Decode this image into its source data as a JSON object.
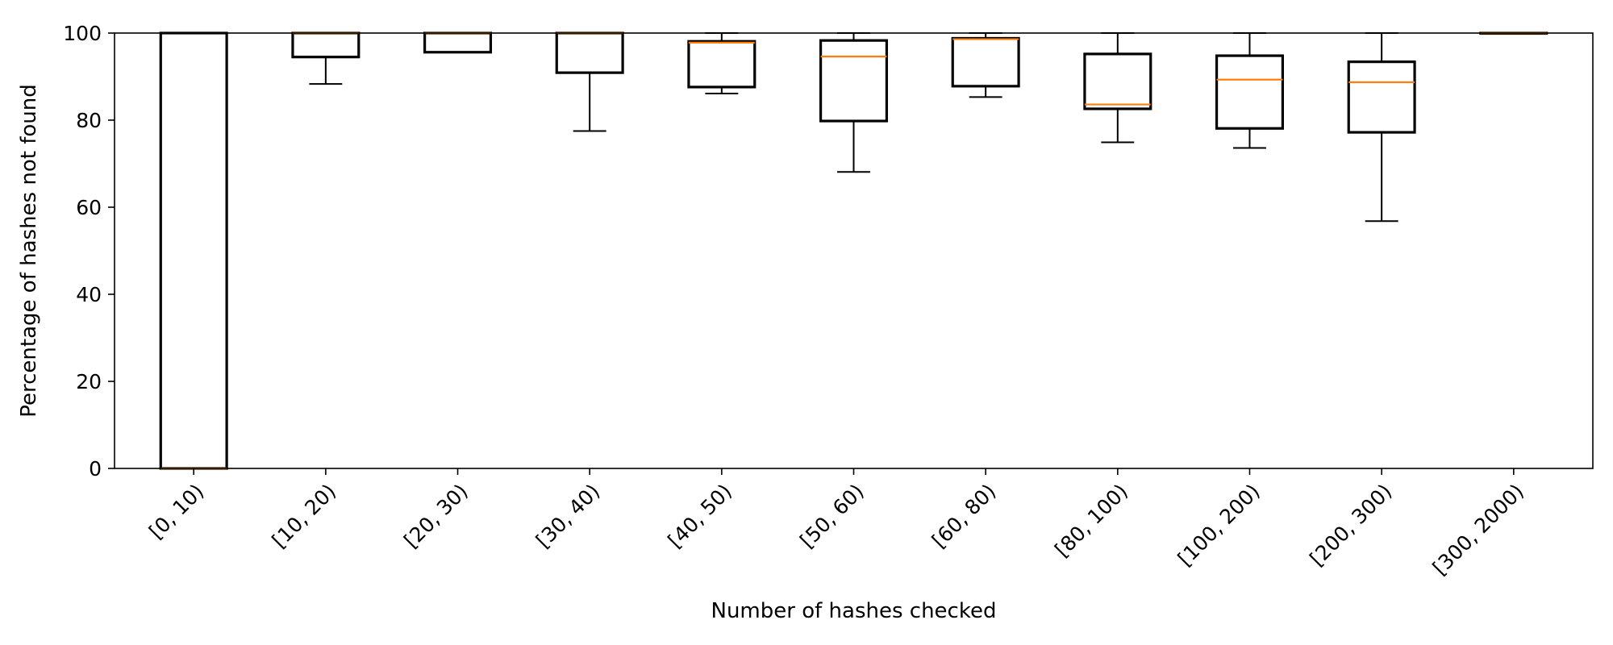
{
  "chart_data": {
    "type": "box",
    "title": "",
    "xlabel": "Number of hashes checked",
    "ylabel": "Percentage of hashes not found",
    "ylim": [
      0,
      100
    ],
    "yticks": [
      0,
      20,
      40,
      60,
      80,
      100
    ],
    "ytick_labels": [
      "0",
      "20",
      "40",
      "60",
      "80",
      "100"
    ],
    "categories": [
      "[0, 10)",
      "[10, 20)",
      "[20, 30)",
      "[30, 40)",
      "[40, 50)",
      "[50, 60)",
      "[60, 80)",
      "[80, 100)",
      "[100, 200)",
      "[200, 300)",
      "[300, 2000)"
    ],
    "boxes": [
      {
        "whisker_low": 0,
        "q1": 0,
        "median": 0,
        "q3": 100,
        "whisker_high": 100
      },
      {
        "whisker_low": 88.3,
        "q1": 94.5,
        "median": 100,
        "q3": 100,
        "whisker_high": 100
      },
      {
        "whisker_low": 95.6,
        "q1": 95.6,
        "median": 100,
        "q3": 100,
        "whisker_high": 100
      },
      {
        "whisker_low": 77.5,
        "q1": 90.9,
        "median": 100,
        "q3": 100,
        "whisker_high": 100
      },
      {
        "whisker_low": 86.1,
        "q1": 87.6,
        "median": 97.8,
        "q3": 98.1,
        "whisker_high": 100
      },
      {
        "whisker_low": 68.1,
        "q1": 79.8,
        "median": 94.6,
        "q3": 98.3,
        "whisker_high": 100
      },
      {
        "whisker_low": 85.3,
        "q1": 87.8,
        "median": 98.6,
        "q3": 98.8,
        "whisker_high": 100
      },
      {
        "whisker_low": 74.9,
        "q1": 82.6,
        "median": 83.6,
        "q3": 95.2,
        "whisker_high": 100
      },
      {
        "whisker_low": 73.6,
        "q1": 78.1,
        "median": 89.3,
        "q3": 94.8,
        "whisker_high": 100
      },
      {
        "whisker_low": 56.8,
        "q1": 77.2,
        "median": 88.7,
        "q3": 93.4,
        "whisker_high": 100
      },
      {
        "whisker_low": 100,
        "q1": 100,
        "median": 100,
        "q3": 100,
        "whisker_high": 100
      }
    ],
    "colors": {
      "box_edge": "#000000",
      "median": "#ff7f0e",
      "whisker": "#000000",
      "axis": "#000000",
      "background": "#ffffff"
    },
    "grid": false,
    "legend": "none"
  }
}
